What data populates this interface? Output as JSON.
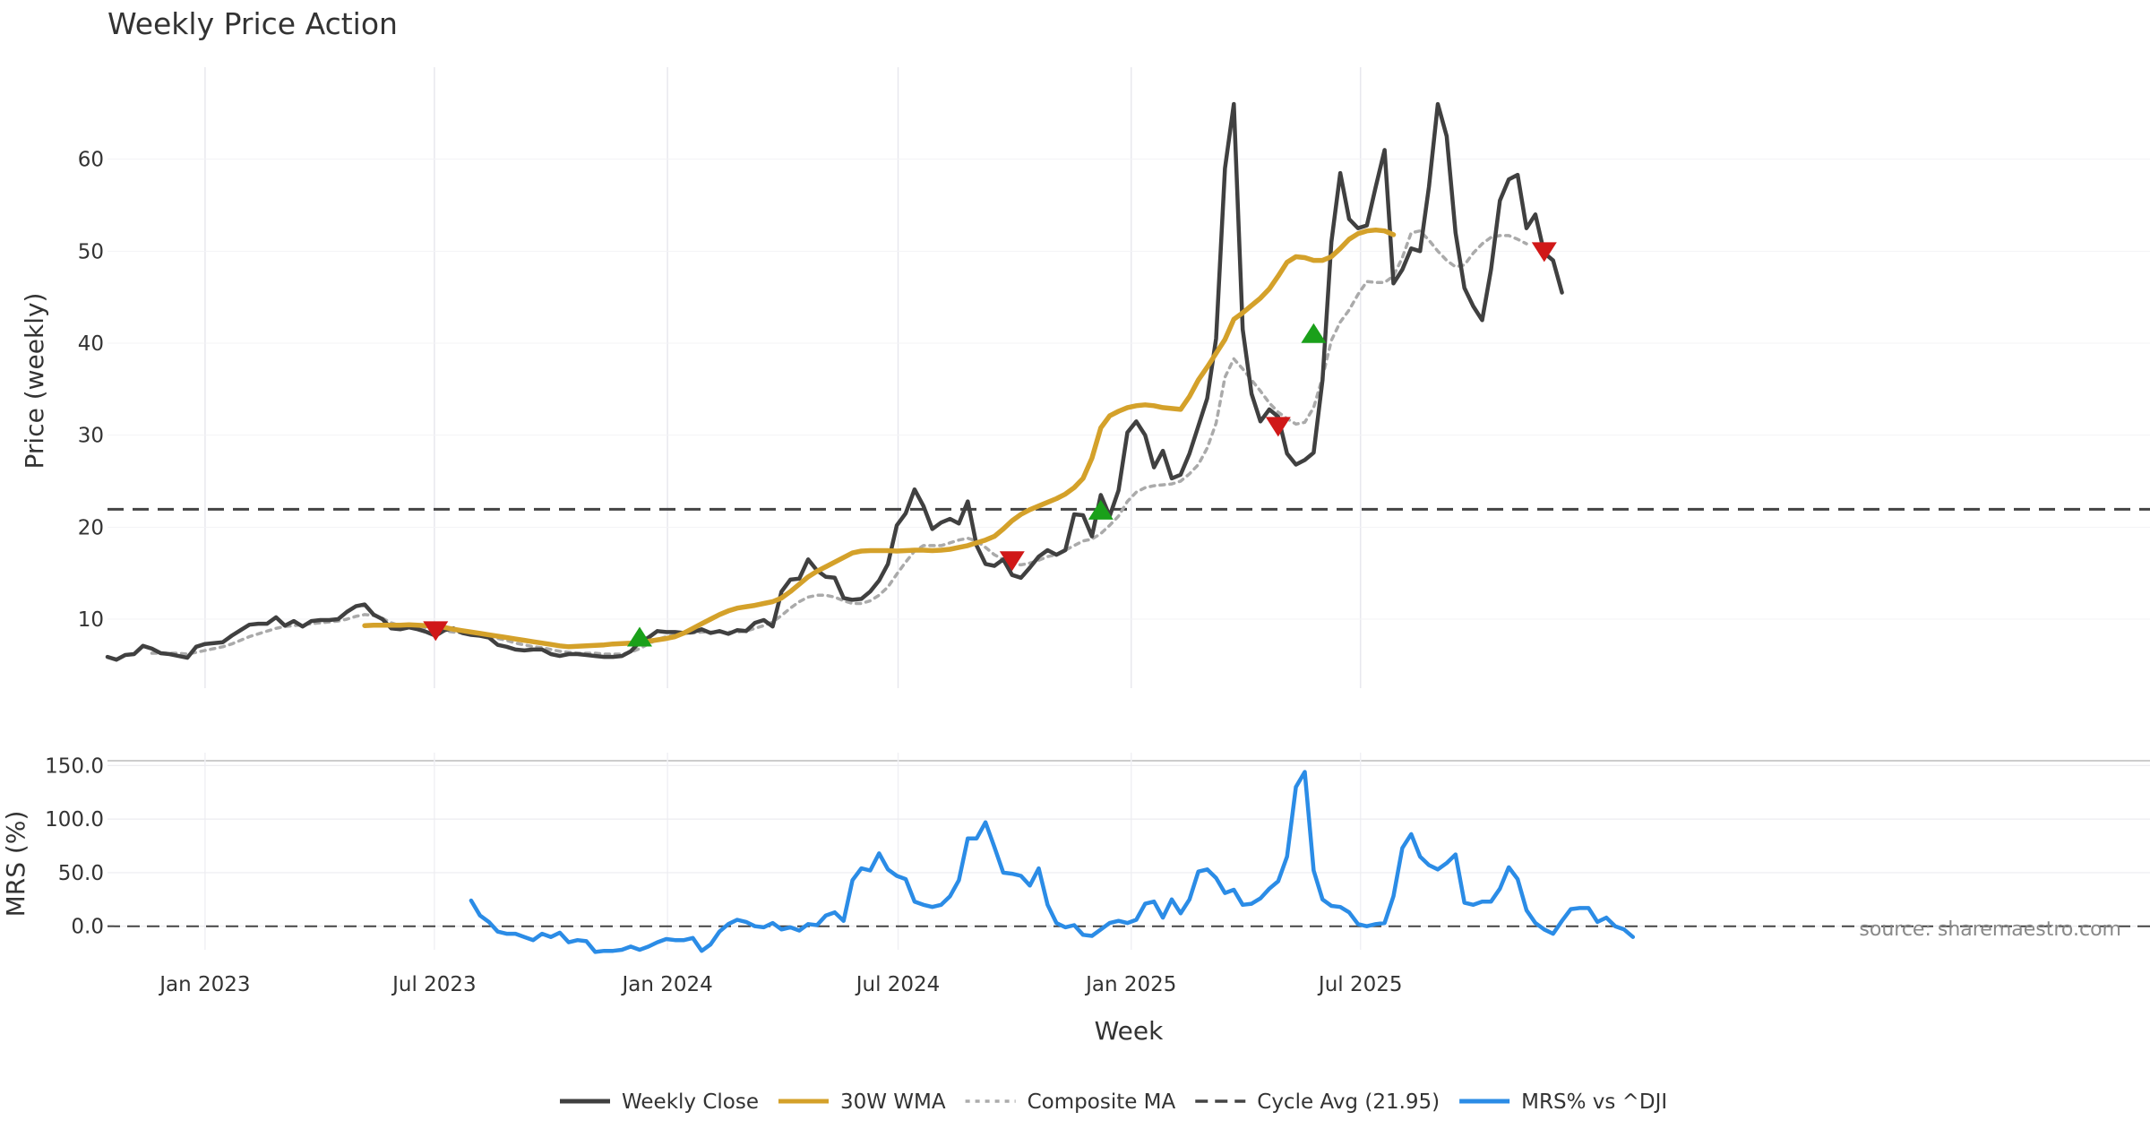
{
  "title": "Weekly Price Action",
  "source_label": "source: sharemaestro.com",
  "colors": {
    "close": "#404040",
    "wma": "#d4a12a",
    "composite": "#aaaaaa",
    "cycle": "#444444",
    "mrs": "#2b8ce6",
    "buy": "#1aa01a",
    "sell": "#d01818",
    "grid": "#e8e8ee"
  },
  "chart_data": [
    {
      "type": "line",
      "panel": "price",
      "title": "Weekly Price Action",
      "xlabel": "Week",
      "ylabel": "Price (weekly)",
      "x_start": "2022-10-16",
      "x_step_days": 7,
      "x_tick_labels": [
        "Jan 2023",
        "Jul 2023",
        "Jan 2024",
        "Jul 2024",
        "Jan 2025",
        "Jul 2025"
      ],
      "x_tick_dates": [
        "2023-01-01",
        "2023-07-01",
        "2024-01-01",
        "2024-07-01",
        "2025-01-01",
        "2025-07-01"
      ],
      "ylim": [
        2.5,
        70
      ],
      "y_ticks": [
        10,
        20,
        30,
        40,
        50,
        60
      ],
      "cycle_avg": 21.95,
      "series": [
        {
          "name": "Weekly Close",
          "values": [
            5.9,
            5.6,
            6.1,
            6.2,
            7.1,
            6.8,
            6.3,
            6.2,
            6.0,
            5.8,
            7.0,
            7.3,
            7.4,
            7.5,
            8.2,
            8.8,
            9.4,
            9.5,
            9.5,
            10.2,
            9.3,
            9.8,
            9.2,
            9.8,
            9.9,
            9.9,
            10.0,
            10.8,
            11.4,
            11.6,
            10.5,
            10.0,
            9.0,
            8.9,
            9.1,
            8.9,
            8.6,
            8.2,
            8.8,
            9.0,
            8.5,
            8.3,
            8.2,
            8.0,
            7.2,
            7.0,
            6.7,
            6.6,
            6.7,
            6.7,
            6.2,
            6.0,
            6.2,
            6.2,
            6.1,
            6.0,
            5.9,
            5.9,
            6.0,
            6.5,
            7.5,
            8.0,
            8.7,
            8.6,
            8.6,
            8.5,
            8.6,
            8.9,
            8.5,
            8.7,
            8.4,
            8.8,
            8.7,
            9.6,
            9.9,
            9.2,
            13.0,
            14.3,
            14.4,
            16.5,
            15.3,
            14.6,
            14.5,
            12.3,
            12.1,
            12.2,
            13.0,
            14.2,
            16.0,
            20.2,
            21.5,
            24.1,
            22.3,
            19.8,
            20.5,
            20.9,
            20.4,
            22.8,
            18.0,
            16.0,
            15.8,
            16.5,
            14.8,
            14.5,
            15.6,
            16.8,
            17.5,
            17.0,
            17.5,
            21.4,
            21.3,
            19.0,
            23.5,
            21.2,
            24.0,
            30.3,
            31.5,
            30.0,
            26.5,
            28.3,
            25.3,
            25.7,
            28.0,
            31.0,
            34.0,
            40.5,
            59.0,
            66.0,
            41.5,
            34.5,
            31.5,
            32.8,
            32.0,
            28.0,
            26.8,
            27.3,
            28.1,
            36.0,
            51.0,
            58.5,
            53.5,
            52.5,
            52.8,
            57.0,
            61.0,
            46.5,
            48.0,
            50.3,
            50.0,
            57.0,
            66.0,
            62.5,
            52.0,
            46.0,
            44.0,
            42.5,
            48.0,
            55.5,
            57.8,
            58.3,
            52.5,
            54.0,
            49.8,
            49.0,
            45.5
          ]
        },
        {
          "name": "30W WMA",
          "values": [
            null,
            null,
            null,
            null,
            null,
            null,
            null,
            null,
            null,
            null,
            null,
            null,
            null,
            null,
            null,
            null,
            null,
            null,
            null,
            null,
            null,
            null,
            null,
            null,
            null,
            null,
            null,
            null,
            null,
            9.3,
            9.35,
            9.35,
            9.35,
            9.35,
            9.4,
            9.35,
            9.3,
            9.25,
            9.1,
            8.9,
            8.75,
            8.6,
            8.45,
            8.3,
            8.15,
            8.0,
            7.85,
            7.7,
            7.55,
            7.4,
            7.25,
            7.1,
            7.0,
            7.05,
            7.1,
            7.15,
            7.2,
            7.3,
            7.35,
            7.4,
            7.5,
            7.6,
            7.75,
            7.9,
            8.1,
            8.5,
            9.0,
            9.5,
            10.0,
            10.5,
            10.9,
            11.2,
            11.35,
            11.5,
            11.7,
            11.9,
            12.3,
            13.0,
            13.8,
            14.6,
            15.2,
            15.7,
            16.2,
            16.7,
            17.2,
            17.4,
            17.45,
            17.45,
            17.45,
            17.4,
            17.45,
            17.5,
            17.5,
            17.45,
            17.5,
            17.6,
            17.8,
            18.0,
            18.3,
            18.6,
            19.0,
            19.8,
            20.7,
            21.4,
            21.9,
            22.3,
            22.7,
            23.1,
            23.6,
            24.3,
            25.3,
            27.5,
            30.8,
            32.1,
            32.6,
            33.0,
            33.2,
            33.3,
            33.2,
            33.0,
            32.9,
            32.8,
            34.2,
            36.0,
            37.4,
            38.9,
            40.4,
            42.6,
            43.3,
            44.1,
            44.9,
            45.9,
            47.3,
            48.8,
            49.4,
            49.3,
            49.0,
            49.0,
            49.4,
            50.3,
            51.3,
            51.9,
            52.2,
            52.3,
            52.2,
            51.8
          ]
        },
        {
          "name": "Composite MA",
          "values": [
            null,
            null,
            null,
            null,
            null,
            6.3,
            6.3,
            6.3,
            6.3,
            6.2,
            6.4,
            6.6,
            6.8,
            7.0,
            7.3,
            7.7,
            8.1,
            8.4,
            8.7,
            9.0,
            9.2,
            9.3,
            9.4,
            9.5,
            9.6,
            9.7,
            9.8,
            10.0,
            10.3,
            10.5,
            10.4,
            10.1,
            9.6,
            9.3,
            9.3,
            9.2,
            9.0,
            8.8,
            8.7,
            8.6,
            8.5,
            8.4,
            8.3,
            8.2,
            7.9,
            7.7,
            7.4,
            7.2,
            7.0,
            6.9,
            6.7,
            6.5,
            6.4,
            6.3,
            6.3,
            6.3,
            6.2,
            6.2,
            6.2,
            6.4,
            6.8,
            7.3,
            7.8,
            8.1,
            8.3,
            8.4,
            8.5,
            8.6,
            8.6,
            8.6,
            8.6,
            8.6,
            8.7,
            9.0,
            9.3,
            9.7,
            10.4,
            11.2,
            11.9,
            12.4,
            12.6,
            12.6,
            12.4,
            12.0,
            11.7,
            11.7,
            12.0,
            12.6,
            13.5,
            14.9,
            16.2,
            17.4,
            18.0,
            18.0,
            18.0,
            18.3,
            18.6,
            18.8,
            18.5,
            17.8,
            17.0,
            16.5,
            16.0,
            15.9,
            16.1,
            16.4,
            16.8,
            17.0,
            17.5,
            18.0,
            18.5,
            18.7,
            19.3,
            20.2,
            21.2,
            22.8,
            23.8,
            24.3,
            24.5,
            24.6,
            24.7,
            25.0,
            25.8,
            26.8,
            28.6,
            31.3,
            36.3,
            38.3,
            37.2,
            36.0,
            34.8,
            33.5,
            32.5,
            31.8,
            31.2,
            31.4,
            33.0,
            36.3,
            40.3,
            42.3,
            43.6,
            45.3,
            46.7,
            46.6,
            46.6,
            47.3,
            49.3,
            52.0,
            52.2,
            51.2,
            50.0,
            49.0,
            48.3,
            48.5,
            49.8,
            50.8,
            51.5,
            51.7,
            51.7,
            51.3,
            50.8
          ]
        }
      ],
      "signals": [
        {
          "type": "sell",
          "week": "2023-07-02",
          "price": 8.8
        },
        {
          "type": "buy",
          "week": "2023-12-10",
          "price": 8.0
        },
        {
          "type": "sell",
          "week": "2024-09-29",
          "price": 16.4
        },
        {
          "type": "buy",
          "week": "2024-12-08",
          "price": 21.8
        },
        {
          "type": "sell",
          "week": "2025-04-27",
          "price": 31.0
        },
        {
          "type": "buy",
          "week": "2025-05-25",
          "price": 41.0
        },
        {
          "type": "sell",
          "week": "2025-11-23",
          "price": 50.0
        }
      ]
    },
    {
      "type": "line",
      "panel": "mrs",
      "ylabel": "MRS (%)",
      "ylim": [
        -22,
        162
      ],
      "y_ticks": [
        0.0,
        50.0,
        100.0,
        150.0
      ],
      "y_tick_labels": [
        "0.0",
        "50.0",
        "100.0",
        "150.0"
      ],
      "series": [
        {
          "name": "MRS% vs ^DJI",
          "values": [
            null,
            null,
            null,
            null,
            null,
            null,
            null,
            null,
            null,
            null,
            null,
            null,
            null,
            null,
            null,
            null,
            null,
            null,
            null,
            null,
            null,
            null,
            null,
            null,
            null,
            null,
            null,
            null,
            null,
            null,
            null,
            null,
            null,
            null,
            null,
            null,
            null,
            null,
            null,
            null,
            null,
            24,
            10,
            4,
            -5,
            -7,
            -7,
            -10,
            -13,
            -7,
            -10,
            -6,
            -15,
            -13,
            -14,
            -24,
            -23,
            -23,
            -22,
            -19,
            -22,
            -19,
            -15,
            -12,
            -13,
            -13,
            -11,
            -23,
            -17,
            -5,
            2,
            6,
            4,
            0,
            -1,
            3,
            -3,
            -1,
            -4,
            2,
            1,
            10,
            13,
            5,
            43,
            54,
            52,
            68,
            53,
            47,
            44,
            23,
            20,
            18,
            20,
            28,
            43,
            82,
            82,
            97,
            74,
            50,
            49,
            47,
            38,
            54,
            20,
            3,
            -1,
            1,
            -8,
            -9,
            -3,
            3,
            5,
            3,
            6,
            21,
            23,
            8,
            25,
            12,
            25,
            51,
            53,
            45,
            31,
            34,
            20,
            21,
            26,
            35,
            42,
            65,
            130,
            144,
            52,
            25,
            19,
            18,
            13,
            2,
            0,
            2,
            3,
            28,
            73,
            86,
            65,
            57,
            53,
            59,
            67,
            22,
            20,
            23,
            23,
            35,
            55,
            44,
            15,
            3,
            -3,
            -7,
            5,
            16,
            17,
            17,
            4,
            8,
            0,
            -3,
            -10
          ]
        }
      ],
      "reference_line": 0.0
    }
  ],
  "legend": [
    {
      "label": "Weekly Close",
      "style": "solid",
      "color": "#404040"
    },
    {
      "label": "30W WMA",
      "style": "solid",
      "color": "#d4a12a"
    },
    {
      "label": "Composite MA",
      "style": "dotted",
      "color": "#aaaaaa"
    },
    {
      "label": "Cycle Avg (21.95)",
      "style": "dashed",
      "color": "#444444"
    },
    {
      "label": "MRS% vs ^DJI",
      "style": "solid",
      "color": "#2b8ce6"
    }
  ]
}
